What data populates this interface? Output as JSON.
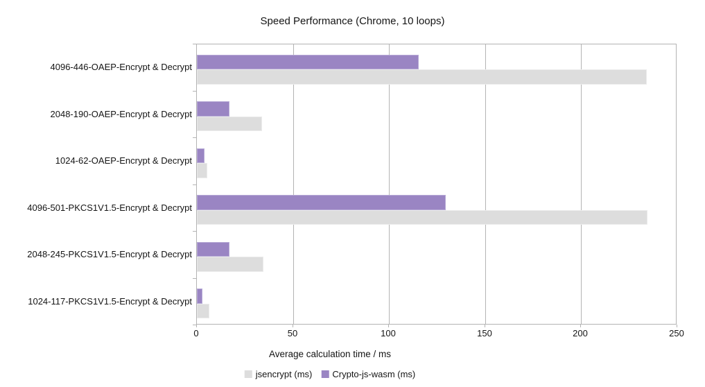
{
  "chart_data": {
    "type": "bar",
    "orientation": "horizontal",
    "title": "Speed Performance (Chrome, 10 loops)",
    "xlabel": "Average calculation time / ms",
    "categories": [
      "4096-446-OAEP-Encrypt & Decrypt",
      "2048-190-OAEP-Encrypt & Decrypt",
      "1024-62-OAEP-Encrypt & Decrypt",
      "4096-501-PKCS1V1.5-Encrypt & Decrypt",
      "2048-245-PKCS1V1.5-Encrypt & Decrypt",
      "1024-117-PKCS1V1.5-Encrypt & Decrypt"
    ],
    "series": [
      {
        "name": "jsencrypt (ms)",
        "color": "#dddddd",
        "border_color": "#ebebeb",
        "values": [
          234,
          34,
          5.5,
          234.5,
          34.5,
          6.5
        ]
      },
      {
        "name": "Crypto-js-wasm (ms)",
        "color": "#9a85c3",
        "border_color": "#b7aad6",
        "values": [
          115.5,
          17,
          4,
          129.5,
          17,
          3
        ]
      }
    ],
    "xlim": [
      0,
      250
    ],
    "xticks": [
      0,
      50,
      100,
      150,
      200,
      250
    ],
    "grid": "vertical",
    "legend_position": "bottom",
    "axis_color": "#b3b3b3",
    "text_color": "#141414"
  }
}
